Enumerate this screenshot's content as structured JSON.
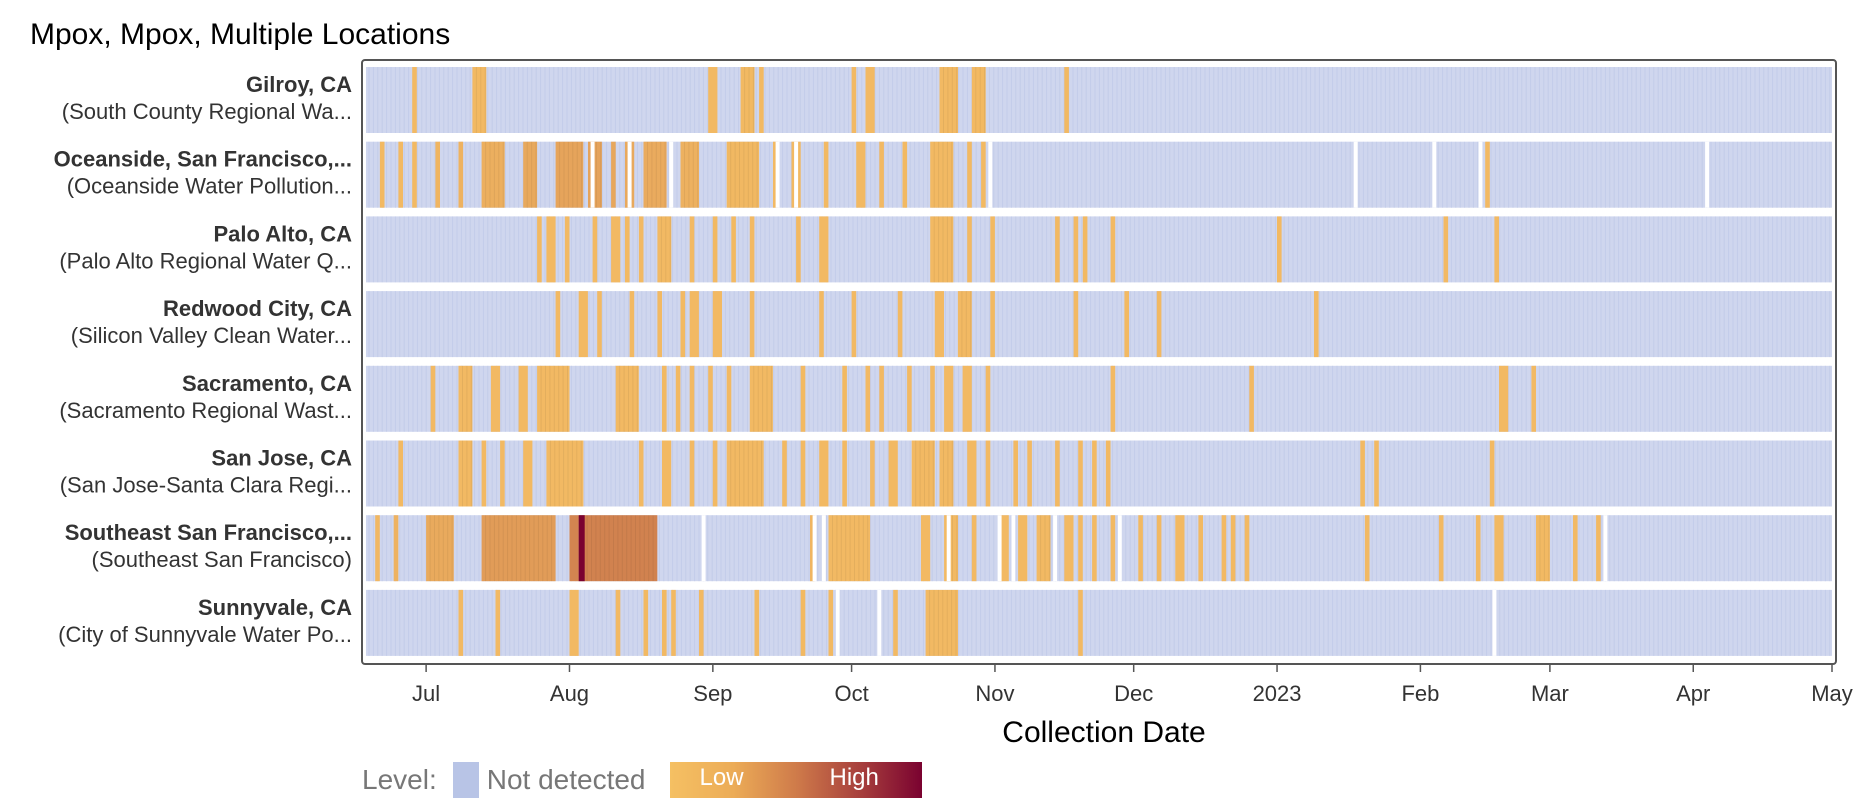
{
  "title": "Mpox, Mpox, Multiple Locations",
  "colors": {
    "not_detected": "#cfd6ee",
    "not_detected_line": "#bcc6e6",
    "low": "#f2b963",
    "mid": "#d2834f",
    "high": "#7a0230",
    "frame": "#555555",
    "row_gap": "#ffffff"
  },
  "legend": {
    "label": "Level:",
    "not_detected": "Not detected",
    "low": "Low",
    "high": "High"
  },
  "chart_data": {
    "type": "heatmap",
    "title": "Mpox, Mpox, Multiple Locations",
    "xlabel": "Collection Date",
    "x_range": [
      "2022-06-18",
      "2023-05-01"
    ],
    "x_ticks": [
      {
        "date": "2022-07-01",
        "label": "Jul"
      },
      {
        "date": "2022-08-01",
        "label": "Aug"
      },
      {
        "date": "2022-09-01",
        "label": "Sep"
      },
      {
        "date": "2022-10-01",
        "label": "Oct"
      },
      {
        "date": "2022-11-01",
        "label": "Nov"
      },
      {
        "date": "2022-12-01",
        "label": "Dec"
      },
      {
        "date": "2023-01-01",
        "label": "2023"
      },
      {
        "date": "2023-02-01",
        "label": "Feb"
      },
      {
        "date": "2023-03-01",
        "label": "Mar"
      },
      {
        "date": "2023-04-01",
        "label": "Apr"
      },
      {
        "date": "2023-05-01",
        "label": "May"
      }
    ],
    "levels": [
      "Not detected",
      "Low",
      "High"
    ],
    "rows": [
      {
        "name": "Gilroy, CA",
        "site": "(South County Regional Wa...",
        "detections": [
          [
            "2022-06-28",
            1
          ],
          [
            "2022-07-11",
            3
          ],
          [
            "2022-08-31",
            2
          ],
          [
            "2022-09-07",
            3
          ],
          [
            "2022-09-11",
            1
          ],
          [
            "2022-10-01",
            1
          ],
          [
            "2022-10-04",
            2
          ],
          [
            "2022-10-20",
            4
          ],
          [
            "2022-10-27",
            3
          ],
          [
            "2022-11-16",
            1
          ]
        ],
        "gaps": []
      },
      {
        "name": "Oceanside, San Francisco,...",
        "site": "(Oceanside Water Pollution...",
        "detections": [
          [
            "2022-06-21",
            1
          ],
          [
            "2022-06-25",
            1
          ],
          [
            "2022-06-28",
            1
          ],
          [
            "2022-07-03",
            1
          ],
          [
            "2022-07-08",
            1
          ],
          [
            "2022-07-13",
            5
          ],
          [
            "2022-07-22",
            3
          ],
          [
            "2022-07-29",
            6
          ],
          [
            "2022-08-05",
            3
          ],
          [
            "2022-08-10",
            1
          ],
          [
            "2022-08-13",
            2
          ],
          [
            "2022-08-17",
            5
          ],
          [
            "2022-08-25",
            4
          ],
          [
            "2022-09-04",
            7
          ],
          [
            "2022-09-14",
            1
          ],
          [
            "2022-09-18",
            2
          ],
          [
            "2022-09-25",
            1
          ],
          [
            "2022-10-02",
            2
          ],
          [
            "2022-10-07",
            1
          ],
          [
            "2022-10-12",
            1
          ],
          [
            "2022-10-18",
            5
          ],
          [
            "2022-10-26",
            1
          ],
          [
            "2022-10-29",
            1
          ],
          [
            "2023-02-15",
            1
          ]
        ],
        "gaps": [
          "2022-08-06",
          "2022-08-14",
          "2022-08-23",
          "2022-09-15",
          "2022-09-19",
          "2022-10-31",
          "2023-01-18",
          "2023-02-04",
          "2023-02-14",
          "2023-04-04"
        ]
      },
      {
        "name": "Palo Alto, CA",
        "site": "(Palo Alto Regional Water Q...",
        "detections": [
          [
            "2022-07-25",
            1
          ],
          [
            "2022-07-27",
            2
          ],
          [
            "2022-07-31",
            1
          ],
          [
            "2022-08-06",
            1
          ],
          [
            "2022-08-10",
            2
          ],
          [
            "2022-08-13",
            1
          ],
          [
            "2022-08-16",
            1
          ],
          [
            "2022-08-20",
            3
          ],
          [
            "2022-08-27",
            1
          ],
          [
            "2022-09-01",
            1
          ],
          [
            "2022-09-05",
            1
          ],
          [
            "2022-09-09",
            1
          ],
          [
            "2022-09-19",
            1
          ],
          [
            "2022-09-24",
            2
          ],
          [
            "2022-10-18",
            5
          ],
          [
            "2022-10-26",
            1
          ],
          [
            "2022-10-31",
            1
          ],
          [
            "2022-11-14",
            1
          ],
          [
            "2022-11-18",
            1
          ],
          [
            "2022-11-20",
            1
          ],
          [
            "2022-11-26",
            1
          ],
          [
            "2023-01-01",
            1
          ],
          [
            "2023-02-06",
            1
          ],
          [
            "2023-02-17",
            1
          ]
        ],
        "gaps": []
      },
      {
        "name": "Redwood City, CA",
        "site": "(Silicon Valley Clean Water...",
        "detections": [
          [
            "2022-07-29",
            1
          ],
          [
            "2022-08-03",
            2
          ],
          [
            "2022-08-07",
            1
          ],
          [
            "2022-08-14",
            1
          ],
          [
            "2022-08-20",
            1
          ],
          [
            "2022-08-25",
            1
          ],
          [
            "2022-08-27",
            2
          ],
          [
            "2022-09-01",
            2
          ],
          [
            "2022-09-09",
            1
          ],
          [
            "2022-09-24",
            1
          ],
          [
            "2022-10-01",
            1
          ],
          [
            "2022-10-11",
            1
          ],
          [
            "2022-10-19",
            2
          ],
          [
            "2022-10-24",
            3
          ],
          [
            "2022-10-31",
            1
          ],
          [
            "2022-11-18",
            1
          ],
          [
            "2022-11-29",
            1
          ],
          [
            "2022-12-06",
            1
          ],
          [
            "2023-01-09",
            1
          ]
        ],
        "gaps": []
      },
      {
        "name": "Sacramento, CA",
        "site": "(Sacramento Regional Wast...",
        "detections": [
          [
            "2022-07-02",
            1
          ],
          [
            "2022-07-08",
            3
          ],
          [
            "2022-07-15",
            2
          ],
          [
            "2022-07-21",
            2
          ],
          [
            "2022-07-25",
            7
          ],
          [
            "2022-08-11",
            5
          ],
          [
            "2022-08-21",
            1
          ],
          [
            "2022-08-24",
            1
          ],
          [
            "2022-08-27",
            1
          ],
          [
            "2022-08-31",
            1
          ],
          [
            "2022-09-04",
            1
          ],
          [
            "2022-09-09",
            5
          ],
          [
            "2022-09-20",
            1
          ],
          [
            "2022-09-29",
            1
          ],
          [
            "2022-10-04",
            1
          ],
          [
            "2022-10-07",
            1
          ],
          [
            "2022-10-13",
            1
          ],
          [
            "2022-10-18",
            1
          ],
          [
            "2022-10-21",
            2
          ],
          [
            "2022-10-25",
            2
          ],
          [
            "2022-10-30",
            1
          ],
          [
            "2022-11-26",
            1
          ],
          [
            "2022-12-26",
            1
          ],
          [
            "2023-02-18",
            2
          ],
          [
            "2023-02-25",
            1
          ]
        ],
        "gaps": []
      },
      {
        "name": "San Jose, CA",
        "site": "(San Jose-Santa Clara Regi...",
        "detections": [
          [
            "2022-06-25",
            1
          ],
          [
            "2022-07-08",
            3
          ],
          [
            "2022-07-13",
            1
          ],
          [
            "2022-07-17",
            1
          ],
          [
            "2022-07-22",
            2
          ],
          [
            "2022-07-27",
            8
          ],
          [
            "2022-08-16",
            1
          ],
          [
            "2022-08-21",
            2
          ],
          [
            "2022-08-27",
            1
          ],
          [
            "2022-09-01",
            1
          ],
          [
            "2022-09-04",
            8
          ],
          [
            "2022-09-16",
            1
          ],
          [
            "2022-09-20",
            1
          ],
          [
            "2022-09-24",
            2
          ],
          [
            "2022-09-29",
            1
          ],
          [
            "2022-10-05",
            1
          ],
          [
            "2022-10-09",
            2
          ],
          [
            "2022-10-14",
            5
          ],
          [
            "2022-10-20",
            3
          ],
          [
            "2022-10-26",
            2
          ],
          [
            "2022-10-30",
            1
          ],
          [
            "2022-11-05",
            1
          ],
          [
            "2022-11-08",
            1
          ],
          [
            "2022-11-14",
            1
          ],
          [
            "2022-11-19",
            1
          ],
          [
            "2022-11-22",
            1
          ],
          [
            "2022-11-25",
            1
          ],
          [
            "2023-01-19",
            1
          ],
          [
            "2023-01-22",
            1
          ],
          [
            "2023-02-16",
            1
          ]
        ],
        "gaps": []
      },
      {
        "name": "Southeast San Francisco,...",
        "site": "(Southeast San Francisco)",
        "detections": [
          [
            "2022-06-20",
            1
          ],
          [
            "2022-06-24",
            1
          ],
          [
            "2022-07-01",
            6
          ],
          [
            "2022-07-13",
            16
          ],
          [
            "2022-08-01",
            2
          ],
          [
            "2022-08-03",
            17
          ],
          [
            "2022-09-22",
            1
          ],
          [
            "2022-09-26",
            9
          ],
          [
            "2022-10-16",
            2
          ],
          [
            "2022-10-21",
            3
          ],
          [
            "2022-10-27",
            1
          ],
          [
            "2022-11-02",
            2
          ],
          [
            "2022-11-06",
            2
          ],
          [
            "2022-11-10",
            3
          ],
          [
            "2022-11-16",
            2
          ],
          [
            "2022-11-19",
            1
          ],
          [
            "2022-11-22",
            1
          ],
          [
            "2022-11-26",
            1
          ],
          [
            "2022-12-02",
            1
          ],
          [
            "2022-12-06",
            1
          ],
          [
            "2022-12-10",
            2
          ],
          [
            "2022-12-15",
            1
          ],
          [
            "2022-12-20",
            1
          ],
          [
            "2022-12-22",
            1
          ],
          [
            "2022-12-25",
            1
          ],
          [
            "2023-01-20",
            1
          ],
          [
            "2023-02-05",
            1
          ],
          [
            "2023-02-13",
            1
          ],
          [
            "2023-02-17",
            2
          ],
          [
            "2023-02-26",
            3
          ],
          [
            "2023-03-06",
            1
          ],
          [
            "2023-03-11",
            1
          ]
        ],
        "gaps": [
          "2022-08-30",
          "2022-09-23",
          "2022-09-25",
          "2022-10-22",
          "2022-11-02",
          "2022-11-05",
          "2022-11-14",
          "2022-11-28",
          "2023-03-13"
        ]
      },
      {
        "name": "Sunnyvale, CA",
        "site": "(City of Sunnyvale Water Po...",
        "detections": [
          [
            "2022-07-08",
            1
          ],
          [
            "2022-07-16",
            1
          ],
          [
            "2022-08-01",
            2
          ],
          [
            "2022-08-11",
            1
          ],
          [
            "2022-08-17",
            1
          ],
          [
            "2022-08-21",
            1
          ],
          [
            "2022-08-23",
            1
          ],
          [
            "2022-08-29",
            1
          ],
          [
            "2022-09-10",
            1
          ],
          [
            "2022-09-20",
            1
          ],
          [
            "2022-09-26",
            1
          ],
          [
            "2022-10-10",
            1
          ],
          [
            "2022-10-17",
            7
          ],
          [
            "2022-11-19",
            1
          ]
        ],
        "gaps": [
          "2022-09-28",
          "2022-10-07",
          "2023-02-17"
        ]
      }
    ]
  }
}
